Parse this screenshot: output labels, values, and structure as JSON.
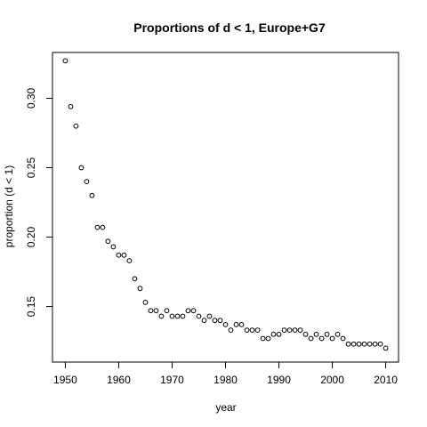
{
  "chart_data": {
    "type": "scatter",
    "title": "Proportions of d < 1, Europe+G7",
    "xlabel": "year",
    "ylabel": "proportion (d < 1)",
    "xlim": [
      1947.6,
      2012.4
    ],
    "ylim": [
      0.11,
      0.333
    ],
    "grid": false,
    "legend": "none",
    "x_ticks": [
      1950,
      1960,
      1970,
      1980,
      1990,
      2000,
      2010
    ],
    "x_tick_labels": [
      "1950",
      "1960",
      "1970",
      "1980",
      "1990",
      "2000",
      "2010"
    ],
    "y_ticks": [
      0.15,
      0.2,
      0.25,
      0.3
    ],
    "y_tick_labels": [
      "0.15",
      "0.20",
      "0.25",
      "0.30"
    ],
    "series": [
      {
        "x": [
          1950,
          1951,
          1952,
          1953,
          1954,
          1955,
          1956,
          1957,
          1958,
          1959,
          1960,
          1961,
          1962,
          1963,
          1964,
          1965,
          1966,
          1967,
          1968,
          1969,
          1970,
          1971,
          1972,
          1973,
          1974,
          1975,
          1976,
          1977,
          1978,
          1979,
          1980,
          1981,
          1982,
          1983,
          1984,
          1985,
          1986,
          1987,
          1988,
          1989,
          1990,
          1991,
          1992,
          1993,
          1994,
          1995,
          1996,
          1997,
          1998,
          1999,
          2000,
          2001,
          2002,
          2003,
          2004,
          2005,
          2006,
          2007,
          2008,
          2009,
          2010
        ],
        "y": [
          0.327,
          0.294,
          0.28,
          0.25,
          0.24,
          0.23,
          0.207,
          0.207,
          0.197,
          0.193,
          0.187,
          0.187,
          0.183,
          0.17,
          0.163,
          0.153,
          0.147,
          0.147,
          0.143,
          0.147,
          0.143,
          0.143,
          0.143,
          0.147,
          0.147,
          0.143,
          0.14,
          0.143,
          0.14,
          0.14,
          0.137,
          0.133,
          0.137,
          0.137,
          0.133,
          0.133,
          0.133,
          0.127,
          0.127,
          0.13,
          0.13,
          0.133,
          0.133,
          0.133,
          0.133,
          0.13,
          0.127,
          0.13,
          0.127,
          0.13,
          0.127,
          0.13,
          0.127,
          0.123,
          0.123,
          0.123,
          0.123,
          0.123,
          0.123,
          0.123,
          0.12
        ]
      }
    ]
  }
}
